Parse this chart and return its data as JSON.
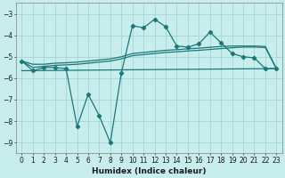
{
  "xlabel": "Humidex (Indice chaleur)",
  "bg_color": "#c8eded",
  "grid_color": "#a8d8d8",
  "line_color": "#1a7878",
  "xlim": [
    -0.5,
    23.5
  ],
  "ylim": [
    -9.5,
    -2.5
  ],
  "yticks": [
    -9,
    -8,
    -7,
    -6,
    -5,
    -4,
    -3
  ],
  "xticks": [
    0,
    1,
    2,
    3,
    4,
    5,
    6,
    7,
    8,
    9,
    10,
    11,
    12,
    13,
    14,
    15,
    16,
    17,
    18,
    19,
    20,
    21,
    22,
    23
  ],
  "main_line": {
    "x": [
      0,
      1,
      2,
      3,
      4,
      5,
      6,
      7,
      8,
      9,
      10,
      11,
      12,
      13,
      14,
      15,
      16,
      17,
      18,
      19,
      20,
      21,
      22,
      23
    ],
    "y": [
      -5.2,
      -5.65,
      -5.5,
      -5.5,
      -5.55,
      -8.25,
      -6.75,
      -7.75,
      -9.0,
      -5.75,
      -3.55,
      -3.65,
      -3.25,
      -3.6,
      -4.5,
      -4.55,
      -4.4,
      -3.85,
      -4.35,
      -4.85,
      -5.0,
      -5.05,
      -5.55,
      -5.55
    ]
  },
  "trend_upper": {
    "x": [
      0,
      1,
      2,
      3,
      4,
      5,
      6,
      7,
      8,
      9,
      10,
      11,
      12,
      13,
      14,
      15,
      16,
      17,
      18,
      19,
      20,
      21,
      22,
      23
    ],
    "y": [
      -5.2,
      -5.35,
      -5.35,
      -5.3,
      -5.28,
      -5.25,
      -5.2,
      -5.15,
      -5.1,
      -5.0,
      -4.85,
      -4.8,
      -4.75,
      -4.7,
      -4.67,
      -4.63,
      -4.6,
      -4.56,
      -4.52,
      -4.5,
      -4.5,
      -4.5,
      -4.52,
      -5.55
    ]
  },
  "trend_lower": {
    "x": [
      0,
      1,
      2,
      3,
      4,
      5,
      6,
      7,
      8,
      9,
      10,
      11,
      12,
      13,
      14,
      15,
      16,
      17,
      18,
      19,
      20,
      21,
      22,
      23
    ],
    "y": [
      -5.2,
      -5.5,
      -5.45,
      -5.4,
      -5.38,
      -5.35,
      -5.3,
      -5.25,
      -5.2,
      -5.1,
      -4.95,
      -4.9,
      -4.85,
      -4.8,
      -4.77,
      -4.73,
      -4.7,
      -4.66,
      -4.62,
      -4.58,
      -4.55,
      -4.55,
      -4.57,
      -5.55
    ]
  },
  "flat_line": {
    "x": [
      0,
      23
    ],
    "y": [
      -5.65,
      -5.55
    ]
  }
}
